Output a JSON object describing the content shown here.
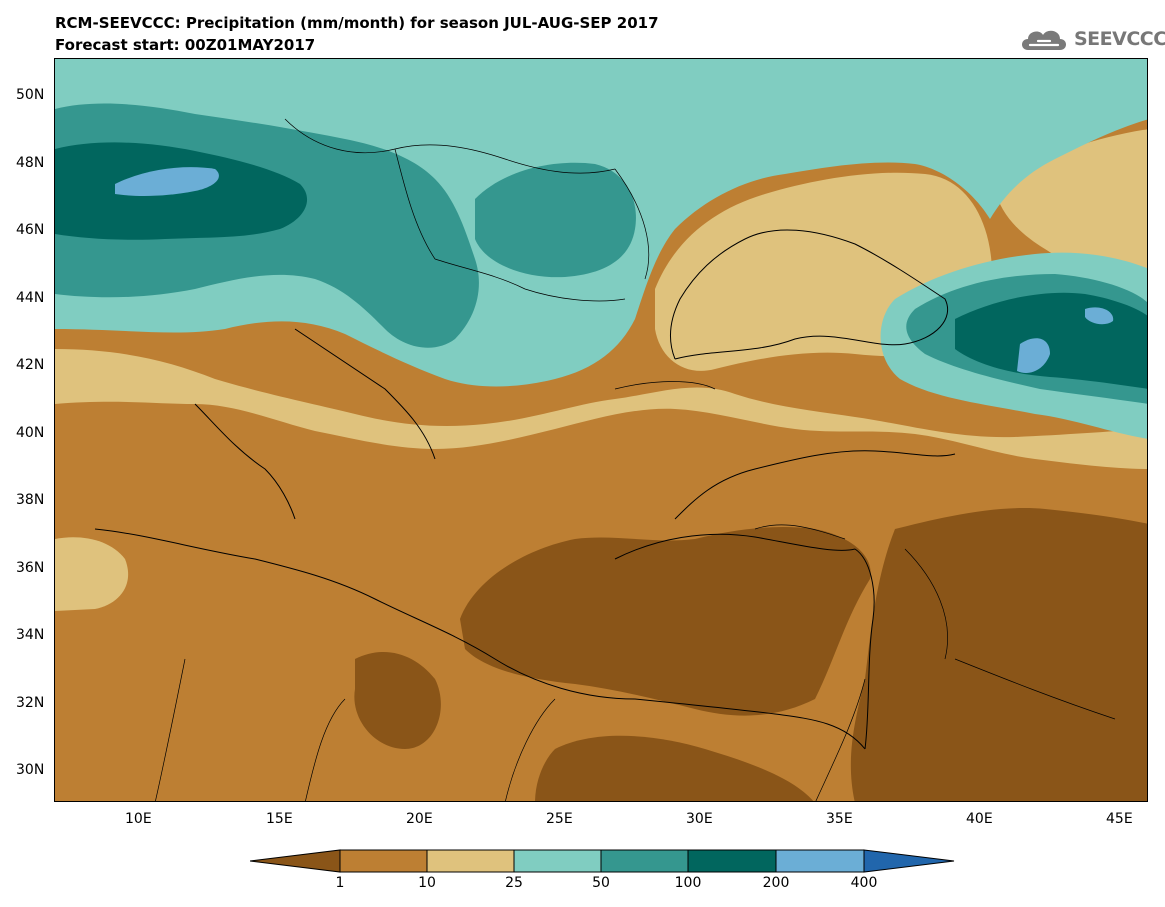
{
  "header": {
    "title": "RCM-SEEVCCC: Precipitation (mm/month) for season JUL-AUG-SEP 2017",
    "subtitle": "Forecast start: 00Z01MAY2017"
  },
  "logo": {
    "text": "SEEVCCC",
    "icon": "cloud-icon"
  },
  "map": {
    "lat_labels": [
      "50N",
      "48N",
      "46N",
      "44N",
      "42N",
      "40N",
      "38N",
      "36N",
      "34N",
      "32N",
      "30N"
    ],
    "lon_labels": [
      "10E",
      "15E",
      "20E",
      "25E",
      "30E",
      "35E",
      "40E",
      "45E"
    ],
    "lat_range": [
      29,
      51
    ],
    "lon_range": [
      7,
      46
    ]
  },
  "colorbar": {
    "levels": [
      "1",
      "10",
      "25",
      "50",
      "100",
      "200",
      "400"
    ],
    "colors": [
      "#8a5518",
      "#bd7f33",
      "#dfc27d",
      "#80cdc1",
      "#35978f",
      "#01665e",
      "#6baed6",
      "#2166ac"
    ]
  }
}
